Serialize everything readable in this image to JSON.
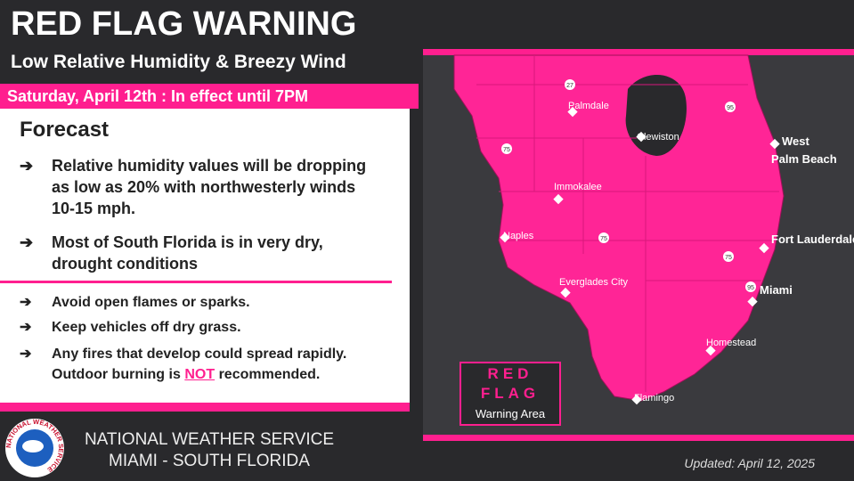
{
  "header": {
    "title": "RED FLAG WARNING",
    "subtitle": "Low Relative Humidity & Breezy Wind"
  },
  "banner": "Saturday, April 12th : In effect until 7PM",
  "forecast": {
    "heading": "Forecast",
    "items": [
      "Relative humidity values will be dropping as low as 20% with northwesterly winds 10-15 mph.",
      "Most of South Florida is in very dry, drought conditions"
    ]
  },
  "actions": {
    "items": [
      "Avoid open flames or sparks.",
      "Keep vehicles off dry grass."
    ],
    "last": {
      "line1": "Any fires that develop could spread rapidly.",
      "pre": "Outdoor burning is",
      "emphasis": "NOT",
      "post": "recommended."
    }
  },
  "map": {
    "cities": [
      "Palmdale",
      "Clewiston",
      "West",
      "Palm Beach",
      "Immokalee",
      "Naples",
      "Fort Lauderdale",
      "Everglades City",
      "Miami",
      "Homestead",
      "Flamingo"
    ],
    "shields": [
      "27",
      "95",
      "75",
      "75",
      "75",
      "95"
    ],
    "legend": {
      "line1": "RED",
      "line2": "FLAG",
      "line3": "Warning Area"
    }
  },
  "footer": {
    "logo_text": "NATIONAL WEATHER SERVICE",
    "office": "NATIONAL WEATHER SERVICE",
    "region": "MIAMI - SOUTH FLORIDA",
    "updated": "Updated: April 12, 2025"
  }
}
